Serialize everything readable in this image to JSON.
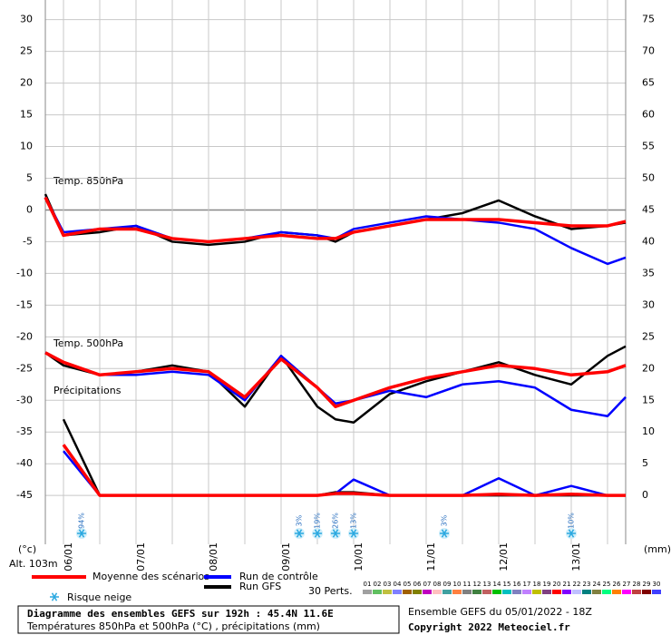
{
  "chart_data": {
    "type": "line",
    "xlim": [
      0,
      192
    ],
    "xticks": [
      {
        "value": 6,
        "label": "06/01"
      },
      {
        "value": 30,
        "label": "07/01"
      },
      {
        "value": 54,
        "label": "08/01"
      },
      {
        "value": 78,
        "label": "09/01"
      },
      {
        "value": 102,
        "label": "10/01"
      },
      {
        "value": 126,
        "label": "11/01"
      },
      {
        "value": 150,
        "label": "12/01"
      },
      {
        "value": 174,
        "label": "13/01"
      }
    ],
    "ylim": [
      -52.7,
      33.1
    ],
    "yticks": [
      30,
      25,
      20,
      15,
      10,
      5,
      0,
      -5,
      -10,
      -15,
      -20,
      -25,
      -30,
      -35,
      -40,
      -45
    ],
    "y2lim": [
      -7.7,
      78.1
    ],
    "y2ticks": [
      75,
      70,
      65,
      60,
      55,
      50,
      45,
      40,
      35,
      30,
      25,
      20,
      15,
      10,
      5,
      0
    ],
    "ylabel": "(°c)",
    "y2label": "(mm)",
    "altitude": "Alt. 103m",
    "grid": true,
    "annotations": [
      "Temp. 850hPa",
      "Temp. 500hPa",
      "Précipitations"
    ],
    "x": [
      0,
      6,
      18,
      30,
      42,
      54,
      66,
      78,
      90,
      96,
      102,
      114,
      126,
      138,
      150,
      162,
      174,
      186,
      192
    ],
    "series": [
      {
        "name": "Moyenne des scénarios",
        "color": "#ff0000",
        "t850": [
          2,
          -4,
          -3,
          -3,
          -4.5,
          -5,
          -4.5,
          -4,
          -4.5,
          -4.5,
          -3.5,
          -2.5,
          -1.5,
          -1.5,
          -1.5,
          -2,
          -2.5,
          -2.5,
          -1.8
        ],
        "t500": [
          -22.5,
          -24,
          -26,
          -25.5,
          -25,
          -25.5,
          -29.5,
          -23.5,
          -28,
          -31,
          -30,
          -28,
          -26.5,
          -25.5,
          -24.5,
          -25,
          -26,
          -25.5,
          -24.5
        ],
        "precip": [
          null,
          8,
          0,
          0,
          0,
          0,
          0,
          0,
          0,
          0.3,
          0.3,
          0,
          0,
          0,
          0.2,
          0,
          0.2,
          0,
          0
        ]
      },
      {
        "name": "Run de contrôle",
        "color": "#0000ff",
        "t850": [
          2,
          -3.5,
          -3,
          -2.5,
          -4.5,
          -5,
          -4.5,
          -3.5,
          -4,
          -4.5,
          -3,
          -2,
          -1,
          -1.5,
          -2,
          -3,
          -6,
          -8.5,
          -7.5
        ],
        "t500": [
          -22.5,
          -24,
          -26,
          -26,
          -25.5,
          -26,
          -30,
          -23,
          -28,
          -30.5,
          -30,
          -28.5,
          -29.5,
          -27.5,
          -27,
          -28,
          -31.5,
          -32.5,
          -29.5
        ],
        "precip": [
          null,
          7,
          0,
          0,
          0,
          0,
          0,
          0,
          0,
          0.3,
          2.5,
          0,
          0,
          0,
          2.7,
          0,
          1.5,
          0,
          0
        ]
      },
      {
        "name": "Run GFS",
        "color": "#000000",
        "t850": [
          2.5,
          -4,
          -3.5,
          -2.5,
          -5,
          -5.5,
          -5,
          -3.5,
          -4,
          -5,
          -3.5,
          -2.5,
          -1.5,
          -0.5,
          1.5,
          -1,
          -3,
          -2.5,
          -2
        ],
        "t500": [
          -22.5,
          -24.5,
          -26,
          -25.5,
          -24.5,
          -25.5,
          -31,
          -23,
          -31,
          -33,
          -33.5,
          -29,
          -27,
          -25.5,
          -24,
          -26,
          -27.5,
          -23,
          -21.5
        ],
        "precip": [
          null,
          12,
          0,
          0,
          0,
          0,
          0,
          0,
          0,
          0.5,
          0.5,
          0,
          0,
          0,
          0,
          0,
          0,
          0,
          0
        ]
      }
    ],
    "snow_risk": {
      "label": "Risque neige",
      "x": [
        12,
        84,
        90,
        96,
        102,
        132,
        174
      ],
      "values": [
        94,
        3,
        19,
        26,
        13,
        3,
        10
      ],
      "value_labels": [
        "94%",
        "3%",
        "19%",
        "26%",
        "13%",
        "3%",
        "10%"
      ]
    },
    "members": {
      "label": "30 Perts.",
      "names": [
        "01",
        "02",
        "03",
        "04",
        "05",
        "06",
        "07",
        "08",
        "09",
        "10",
        "11",
        "12",
        "13",
        "14",
        "15",
        "16",
        "17",
        "18",
        "19",
        "20",
        "21",
        "22",
        "23",
        "24",
        "25",
        "26",
        "27",
        "28",
        "29",
        "30"
      ],
      "colors": [
        "#a0a0a0",
        "#60c060",
        "#c0c040",
        "#8080ff",
        "#a06000",
        "#808000",
        "#c000c0",
        "#ffc0c0",
        "#40a0a0",
        "#ff8040",
        "#808080",
        "#408040",
        "#c06060",
        "#00c000",
        "#00c0c0",
        "#8080c0",
        "#c080ff",
        "#c0c000",
        "#804080",
        "#ff0000",
        "#8000ff",
        "#c0c0ff",
        "#008080",
        "#808040",
        "#00ff80",
        "#ff8000",
        "#ff00ff",
        "#c04040",
        "#800000",
        "#4040ff"
      ]
    },
    "footer": {
      "title": "Diagramme des ensembles GEFS sur 192h : 45.4N 11.6E",
      "subtitle": "Températures 850hPa et 500hPa (°C) , précipitations (mm)",
      "run": "Ensemble GEFS du 05/01/2022 - 18Z",
      "copyright": "Copyright 2022 Meteociel.fr"
    }
  }
}
